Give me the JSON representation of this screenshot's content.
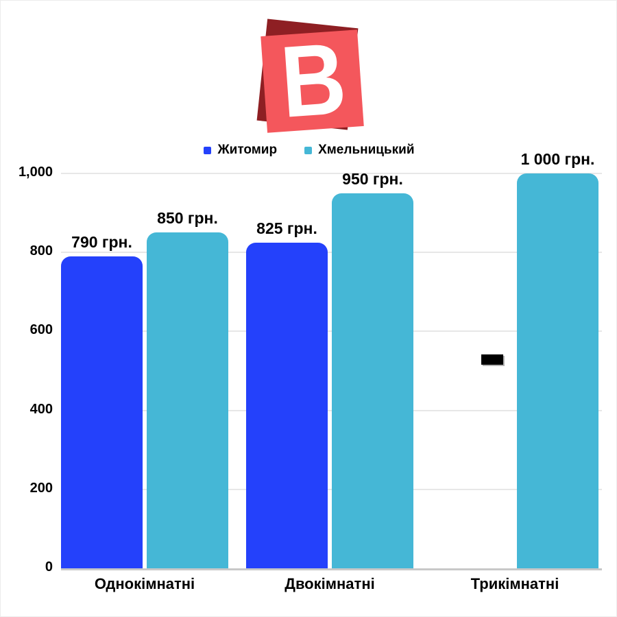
{
  "logo": {
    "letter": "B"
  },
  "chart_data": {
    "type": "bar",
    "categories": [
      "Однокімнатні",
      "Двокімнатні",
      "Трикімнатні"
    ],
    "series": [
      {
        "name": "Житомир",
        "color": "#2441fb",
        "values": [
          790,
          825,
          null
        ],
        "value_labels": [
          "790 грн.",
          "825 грн.",
          null
        ]
      },
      {
        "name": "Хмельницький",
        "color": "#45b7d6",
        "values": [
          850,
          950,
          1000
        ],
        "value_labels": [
          "850 грн.",
          "950 грн.",
          "1 000 грн."
        ]
      }
    ],
    "ylim": [
      0,
      1000
    ],
    "yticks": [
      0,
      200,
      400,
      600,
      800,
      1000
    ],
    "ytick_labels": [
      "0",
      "200",
      "400",
      "600",
      "800",
      "1,000"
    ],
    "grid": true,
    "legend_position": "top",
    "null_marker": "black dash"
  },
  "colors": {
    "grid": "#e7e7e7",
    "baseline": "#c8c8c8",
    "logo_front": "#f4575c",
    "logo_back": "#8e1f23",
    "text": "#000000"
  }
}
